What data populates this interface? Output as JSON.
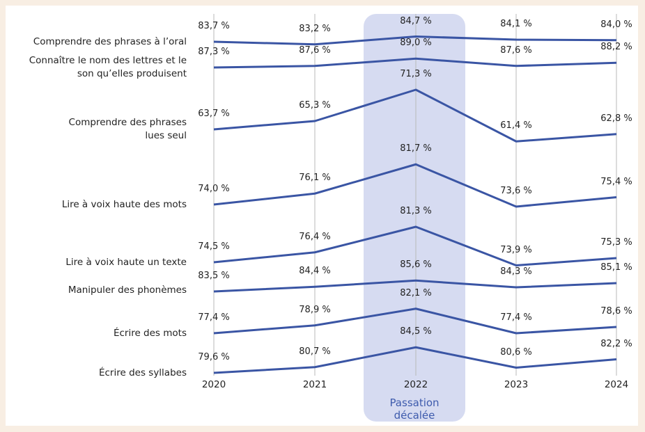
{
  "chart_data": {
    "type": "line",
    "categories": [
      "2020",
      "2021",
      "2022",
      "2023",
      "2024"
    ],
    "annotation": "Passation décalée",
    "grid": true,
    "series": [
      {
        "name": "Comprendre des phrases à l’oral",
        "color": "#3a55a4",
        "values": [
          83.7,
          83.2,
          84.7,
          84.1,
          84.0
        ],
        "value_labels": [
          "83,7 %",
          "83,2 %",
          "84,7 %",
          "84,1 %",
          "84,0 %"
        ]
      },
      {
        "name": "Connaître le nom des lettres et le son qu’elles produisent",
        "color": "#3a55a4",
        "values": [
          87.3,
          87.6,
          89.0,
          87.6,
          88.2
        ],
        "value_labels": [
          "87,3 %",
          "87,6 %",
          "89,0 %",
          "87,6 %",
          "88,2 %"
        ]
      },
      {
        "name": "Comprendre des phrases lues seul",
        "color": "#3a55a4",
        "values": [
          63.7,
          65.3,
          71.3,
          61.4,
          62.8
        ],
        "value_labels": [
          "63,7 %",
          "65,3 %",
          "71,3 %",
          "61,4 %",
          "62,8 %"
        ]
      },
      {
        "name": "Lire à voix haute des mots",
        "color": "#3a55a4",
        "values": [
          74.0,
          76.1,
          81.7,
          73.6,
          75.4
        ],
        "value_labels": [
          "74,0 %",
          "76,1 %",
          "81,7 %",
          "73,6 %",
          "75,4 %"
        ]
      },
      {
        "name": "Lire à voix haute un texte",
        "color": "#3a55a4",
        "values": [
          74.5,
          76.4,
          81.3,
          73.9,
          75.3
        ],
        "value_labels": [
          "74,5 %",
          "76,4 %",
          "81,3 %",
          "73,9 %",
          "75,3 %"
        ]
      },
      {
        "name": "Manipuler des phonèmes",
        "color": "#3a55a4",
        "values": [
          83.5,
          84.4,
          85.6,
          84.3,
          85.1
        ],
        "value_labels": [
          "83,5 %",
          "84,4 %",
          "85,6 %",
          "84,3 %",
          "85,1 %"
        ]
      },
      {
        "name": "Écrire des mots",
        "color": "#3a55a4",
        "values": [
          77.4,
          78.9,
          82.1,
          77.4,
          78.6
        ],
        "value_labels": [
          "77,4 %",
          "78,9 %",
          "82,1 %",
          "77,4 %",
          "78,6 %"
        ]
      },
      {
        "name": "Écrire des syllabes",
        "color": "#3a55a4",
        "values": [
          79.6,
          80.7,
          84.5,
          80.6,
          82.2
        ],
        "value_labels": [
          "79,6 %",
          "80,7 %",
          "84,5 %",
          "80,6 %",
          "82,2 %"
        ]
      }
    ]
  }
}
